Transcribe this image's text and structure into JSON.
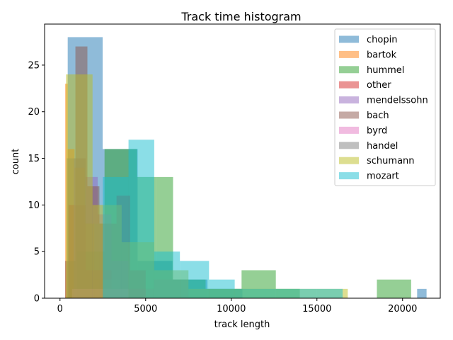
{
  "chart_data": {
    "type": "histogram",
    "title": "Track time histogram",
    "xlabel": "track length",
    "ylabel": "count",
    "xlim": [
      -900,
      22200
    ],
    "ylim": [
      0,
      29.4
    ],
    "xticks": [
      0,
      5000,
      10000,
      15000,
      20000
    ],
    "yticks": [
      0,
      5,
      10,
      15,
      20,
      25
    ],
    "legend_position": "top-right",
    "grid": false,
    "series": [
      {
        "name": "chopin",
        "color": "#1f77b4",
        "bins": [
          [
            450,
            2490,
            28
          ],
          [
            2490,
            4530,
            16
          ],
          [
            4530,
            6570,
            4
          ],
          [
            6570,
            8610,
            2
          ],
          [
            8610,
            10650,
            1
          ],
          [
            10650,
            12690,
            0
          ],
          [
            12690,
            14730,
            0
          ],
          [
            14730,
            16770,
            0
          ],
          [
            16770,
            18810,
            0
          ],
          [
            18810,
            20850,
            0
          ],
          [
            20850,
            21400,
            1
          ]
        ]
      },
      {
        "name": "bartok",
        "color": "#ff7f0e",
        "bins": [
          [
            300,
            450,
            23
          ],
          [
            450,
            850,
            16
          ],
          [
            850,
            1450,
            14
          ],
          [
            1450,
            2000,
            8
          ],
          [
            2000,
            2600,
            2
          ],
          [
            2600,
            4000,
            1
          ]
        ]
      },
      {
        "name": "hummel",
        "color": "#2ca02c",
        "bins": [
          [
            1000,
            2600,
            5
          ],
          [
            2600,
            4500,
            16
          ],
          [
            4500,
            5600,
            13
          ],
          [
            5600,
            6600,
            13
          ],
          [
            6600,
            8500,
            2
          ],
          [
            8500,
            10600,
            1
          ],
          [
            10600,
            12600,
            3
          ],
          [
            12600,
            14000,
            1
          ],
          [
            14000,
            18500,
            0
          ],
          [
            18500,
            20500,
            2
          ]
        ]
      },
      {
        "name": "other",
        "color": "#d62728",
        "bins": [
          [
            500,
            1500,
            10
          ],
          [
            1500,
            3000,
            3
          ],
          [
            3000,
            5000,
            1
          ]
        ]
      },
      {
        "name": "mendelssohn",
        "color": "#9467bd",
        "bins": [
          [
            800,
            1500,
            15
          ],
          [
            1500,
            2200,
            13
          ],
          [
            2200,
            3000,
            9
          ],
          [
            3000,
            4000,
            4
          ]
        ]
      },
      {
        "name": "bach",
        "color": "#8c564b",
        "bins": [
          [
            300,
            900,
            4
          ],
          [
            900,
            1600,
            27
          ],
          [
            1600,
            2300,
            12
          ],
          [
            2300,
            3300,
            8
          ],
          [
            3300,
            4100,
            11
          ],
          [
            4100,
            5000,
            3
          ]
        ]
      },
      {
        "name": "byrd",
        "color": "#e377c2",
        "bins": [
          [
            700,
            2000,
            1
          ],
          [
            2000,
            4000,
            1
          ]
        ]
      },
      {
        "name": "handel",
        "color": "#7f7f7f",
        "bins": [
          [
            400,
            1500,
            15
          ],
          [
            1500,
            2500,
            8
          ],
          [
            2500,
            3500,
            2
          ],
          [
            3500,
            5500,
            1
          ],
          [
            5500,
            7500,
            2
          ]
        ]
      },
      {
        "name": "schumann",
        "color": "#bcbd22",
        "bins": [
          [
            350,
            1900,
            24
          ],
          [
            1900,
            3600,
            10
          ],
          [
            3600,
            5500,
            6
          ],
          [
            5500,
            7500,
            3
          ],
          [
            7500,
            10000,
            1
          ],
          [
            10000,
            12000,
            1
          ],
          [
            12000,
            15000,
            1
          ],
          [
            15000,
            16800,
            1
          ]
        ]
      },
      {
        "name": "mozart",
        "color": "#17becf",
        "bins": [
          [
            2500,
            4000,
            13
          ],
          [
            4000,
            5500,
            17
          ],
          [
            5500,
            7000,
            5
          ],
          [
            7000,
            8700,
            4
          ],
          [
            8700,
            10200,
            2
          ],
          [
            10200,
            12700,
            1
          ],
          [
            12700,
            16500,
            1
          ]
        ]
      }
    ]
  }
}
